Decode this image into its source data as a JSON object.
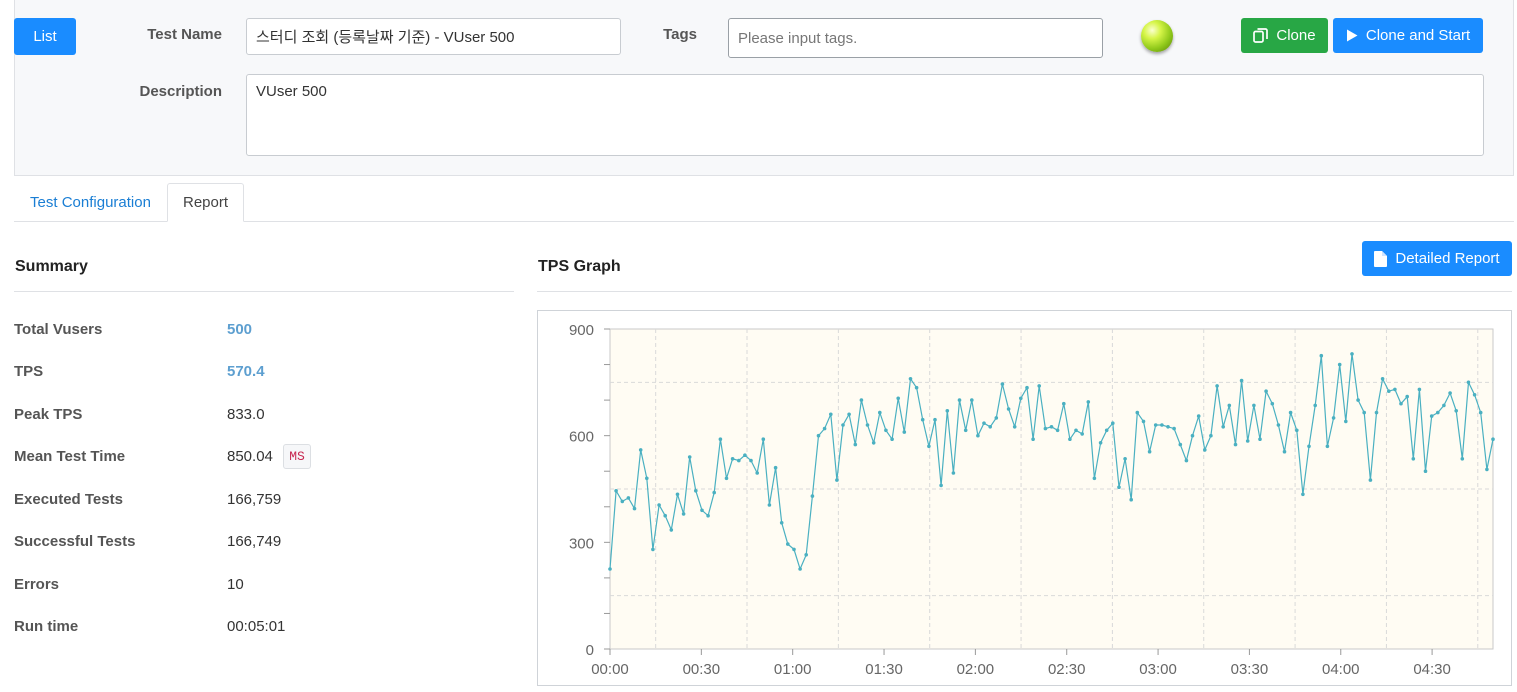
{
  "header": {
    "list_label": "List",
    "test_name_label": "Test Name",
    "test_name_value": "스터디 조회 (등록날짜 기준) - VUser 500",
    "tags_label": "Tags",
    "tags_placeholder": "Please input tags.",
    "status_light": "green",
    "clone_label": "Clone",
    "clone_icon": "copy-icon",
    "clone_start_label": "Clone and Start",
    "clone_start_icon": "play-icon",
    "description_label": "Description",
    "description_value": "VUser 500"
  },
  "tabs": [
    {
      "label": "Test Configuration",
      "active": false
    },
    {
      "label": "Report",
      "active": true
    }
  ],
  "summary": {
    "title": "Summary",
    "rows": [
      {
        "label": "Total Vusers",
        "value": "500"
      },
      {
        "label": "TPS",
        "value": "570.4"
      },
      {
        "label": "Peak TPS",
        "value": "833.0"
      },
      {
        "label": "Mean Test Time",
        "value": "850.04",
        "unit": "MS"
      },
      {
        "label": "Executed Tests",
        "value": "166,759"
      },
      {
        "label": "Successful Tests",
        "value": "166,749"
      },
      {
        "label": "Errors",
        "value": "10"
      },
      {
        "label": "Run time",
        "value": "00:05:01"
      }
    ]
  },
  "graph": {
    "title": "TPS Graph",
    "detailed_report_label": "Detailed Report",
    "detailed_report_icon": "file-icon"
  },
  "colors": {
    "primary": "#1a8cff",
    "success": "#28a745",
    "series_line": "#4ab0c1",
    "plot_bg": "#fffcf3"
  },
  "chart_data": {
    "type": "line",
    "title": "",
    "xlabel": "",
    "ylabel": "",
    "ylim": [
      0,
      900
    ],
    "xlim": [
      0,
      290
    ],
    "yticks": [
      0,
      300,
      600,
      900
    ],
    "xticks": [
      {
        "value": 0,
        "label": "00:00"
      },
      {
        "value": 30,
        "label": "00:30"
      },
      {
        "value": 60,
        "label": "01:00"
      },
      {
        "value": 90,
        "label": "01:30"
      },
      {
        "value": 120,
        "label": "02:00"
      },
      {
        "value": 150,
        "label": "02:30"
      },
      {
        "value": 180,
        "label": "03:00"
      },
      {
        "value": 210,
        "label": "03:30"
      },
      {
        "value": 240,
        "label": "04:00"
      },
      {
        "value": 270,
        "label": "04:30"
      }
    ],
    "x_unit": "seconds",
    "series": [
      {
        "values": [
          225,
          445,
          415,
          425,
          395,
          560,
          480,
          280,
          405,
          375,
          335,
          435,
          380,
          540,
          445,
          390,
          375,
          440,
          590,
          480,
          535,
          530,
          545,
          530,
          495,
          590,
          405,
          510,
          355,
          295,
          280,
          225,
          265,
          430,
          600,
          620,
          660,
          475,
          630,
          660,
          575,
          700,
          630,
          580,
          665,
          615,
          590,
          705,
          610,
          760,
          735,
          645,
          570,
          645,
          460,
          670,
          495,
          700,
          615,
          700,
          600,
          635,
          625,
          650,
          745,
          675,
          625,
          705,
          735,
          590,
          740,
          620,
          625,
          615,
          690,
          590,
          615,
          605,
          695,
          480,
          580,
          615,
          635,
          455,
          535,
          420,
          665,
          640,
          555,
          630,
          630,
          625,
          620,
          575,
          530,
          600,
          655,
          560,
          600,
          740,
          625,
          685,
          575,
          755,
          585,
          685,
          590,
          725,
          690,
          630,
          555,
          665,
          615,
          435,
          570,
          685,
          825,
          570,
          650,
          800,
          640,
          830,
          700,
          665,
          475,
          665,
          760,
          725,
          730,
          690,
          710,
          535,
          730,
          500,
          655,
          665,
          685,
          720,
          670,
          535,
          750,
          715,
          665,
          505,
          590
        ]
      }
    ]
  }
}
